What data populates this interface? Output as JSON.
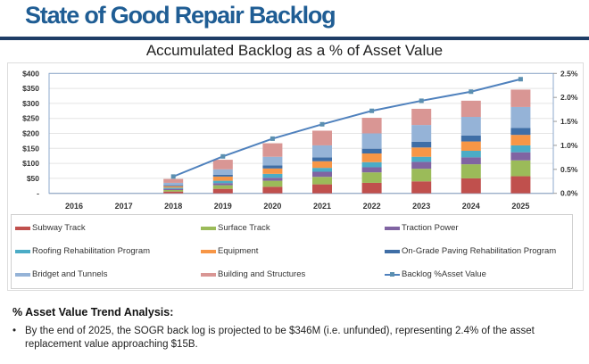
{
  "header": {
    "title": "State of Good Repair Backlog",
    "subtitle": "Accumulated Backlog as a % of Asset Value"
  },
  "chart_data": {
    "type": "bar",
    "stacked": true,
    "title": "Accumulated Backlog as a % of Asset Value",
    "categories": [
      "2016",
      "2017",
      "2018",
      "2019",
      "2020",
      "2021",
      "2022",
      "2023",
      "2024",
      "2025"
    ],
    "y_left": {
      "ylim": [
        0,
        400
      ],
      "ticks": [
        "-",
        "$50",
        "$100",
        "$150",
        "$200",
        "$250",
        "$300",
        "$350",
        "$400"
      ]
    },
    "y_right": {
      "ylim": [
        0,
        2.5
      ],
      "ticks": [
        "0.0%",
        "0.5%",
        "1.0%",
        "1.5%",
        "2.0%",
        "2.5%"
      ]
    },
    "grid": true,
    "legend_placement": "bottom",
    "series": [
      {
        "name": "Subway Track",
        "color": "#c0504d",
        "values": [
          0,
          0,
          6,
          15,
          22,
          30,
          35,
          40,
          50,
          57
        ]
      },
      {
        "name": "Surface Track",
        "color": "#9bbb59",
        "values": [
          0,
          0,
          5,
          12,
          20,
          25,
          35,
          42,
          47,
          53
        ]
      },
      {
        "name": "Traction Power",
        "color": "#8064a2",
        "values": [
          0,
          0,
          4,
          7,
          10,
          17,
          17,
          23,
          23,
          27
        ]
      },
      {
        "name": "Roofing Rehabilitation Program",
        "color": "#4bacc6",
        "values": [
          0,
          0,
          4,
          8,
          13,
          13,
          17,
          17,
          22,
          23
        ]
      },
      {
        "name": "Equipment",
        "color": "#f79646",
        "values": [
          0,
          0,
          5,
          14,
          18,
          22,
          29,
          31,
          31,
          35
        ]
      },
      {
        "name": "On-Grade Paving Rehabilitation Program",
        "color": "#3f6ea6",
        "values": [
          0,
          0,
          3,
          6,
          10,
          13,
          16,
          19,
          20,
          23
        ]
      },
      {
        "name": "Bridget and Tunnels",
        "color": "#95b3d7",
        "values": [
          0,
          0,
          8,
          18,
          29,
          40,
          51,
          56,
          62,
          70
        ]
      },
      {
        "name": "Building and Structures",
        "color": "#d99694",
        "values": [
          0,
          0,
          13,
          32,
          45,
          49,
          52,
          54,
          54,
          58
        ]
      }
    ],
    "line": {
      "name": "Backlog %Asset Value",
      "color": "#4f81bd",
      "axis": "right",
      "values": [
        null,
        null,
        0.35,
        0.77,
        1.14,
        1.44,
        1.72,
        1.93,
        2.12,
        2.38
      ]
    }
  },
  "analysis": {
    "heading": "% Asset Value Trend Analysis:",
    "bullet": "•",
    "text": "By the end of 2025, the SOGR back log is projected to be $346M (i.e. unfunded), representing 2.4% of the asset replacement value approaching $15B."
  }
}
